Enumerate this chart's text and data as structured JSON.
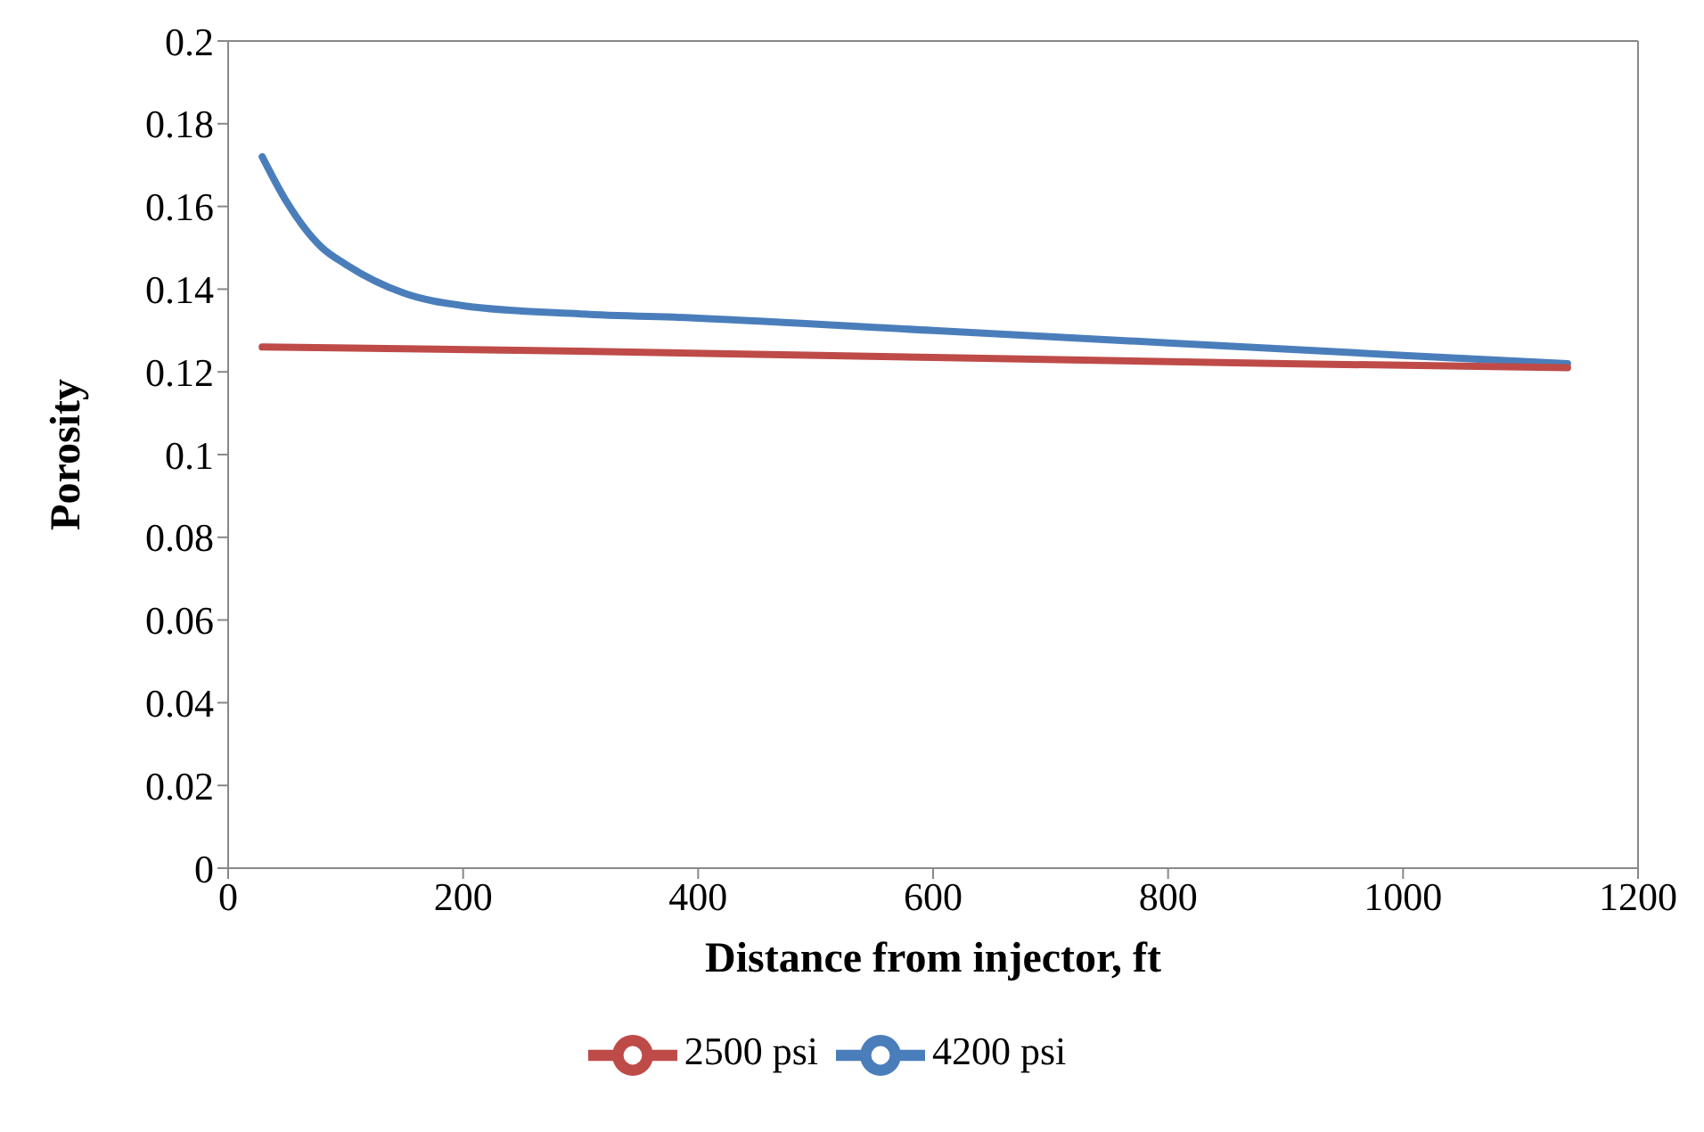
{
  "chart_data": {
    "type": "line",
    "xlabel": "Distance from injector, ft",
    "ylabel": "Porosity",
    "xlim": [
      0,
      1200
    ],
    "xticks": [
      0,
      200,
      400,
      600,
      800,
      1000,
      1200
    ],
    "ylim": [
      0,
      0.2
    ],
    "yticks": [
      0,
      0.02,
      0.04,
      0.06,
      0.08,
      0.1,
      0.12,
      0.14,
      0.16,
      0.18,
      0.2
    ],
    "grid": false,
    "legend": "bottom",
    "marker": "none",
    "line_style": "solid",
    "series": [
      {
        "name": "4200 psi",
        "color": "#4a7ebb",
        "x": [
          29,
          50,
          80,
          100,
          150,
          200,
          300,
          400,
          600,
          800,
          1000,
          1140
        ],
        "values": [
          0.172,
          0.161,
          0.15,
          0.146,
          0.139,
          0.136,
          0.134,
          0.133,
          0.13,
          0.127,
          0.124,
          0.122
        ]
      },
      {
        "name": "2500 psi",
        "color": "#be4b48",
        "x": [
          29,
          300,
          600,
          900,
          1140
        ],
        "values": [
          0.126,
          0.125,
          0.1235,
          0.122,
          0.121
        ]
      }
    ]
  }
}
